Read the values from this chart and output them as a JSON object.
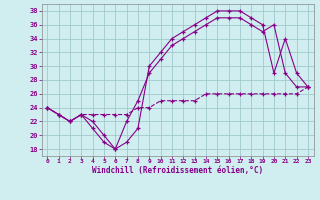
{
  "xlabel": "Windchill (Refroidissement éolien,°C)",
  "xlim_min": 0,
  "xlim_max": 23,
  "ylim_min": 17,
  "ylim_max": 39,
  "xticks": [
    0,
    1,
    2,
    3,
    4,
    5,
    6,
    7,
    8,
    9,
    10,
    11,
    12,
    13,
    14,
    15,
    16,
    17,
    18,
    19,
    20,
    21,
    22,
    23
  ],
  "yticks": [
    18,
    20,
    22,
    24,
    26,
    28,
    30,
    32,
    34,
    36,
    38
  ],
  "bg_color": "#d0eef0",
  "grid_color": "#a0c8cc",
  "line_color": "#880088",
  "line1": [
    24,
    23,
    22,
    23,
    22,
    20,
    18,
    19,
    21,
    30,
    32,
    34,
    35,
    36,
    37,
    38,
    38,
    38,
    37,
    36,
    29,
    34,
    29,
    27
  ],
  "line2": [
    24,
    23,
    22,
    23,
    21,
    19,
    18,
    22,
    25,
    29,
    31,
    33,
    34,
    35,
    36,
    37,
    37,
    37,
    36,
    35,
    36,
    29,
    27,
    27
  ],
  "line3": [
    24,
    23,
    22,
    23,
    23,
    23,
    23,
    23,
    24,
    24,
    25,
    25,
    25,
    25,
    26,
    26,
    26,
    26,
    26,
    26,
    26,
    26,
    26,
    27
  ]
}
